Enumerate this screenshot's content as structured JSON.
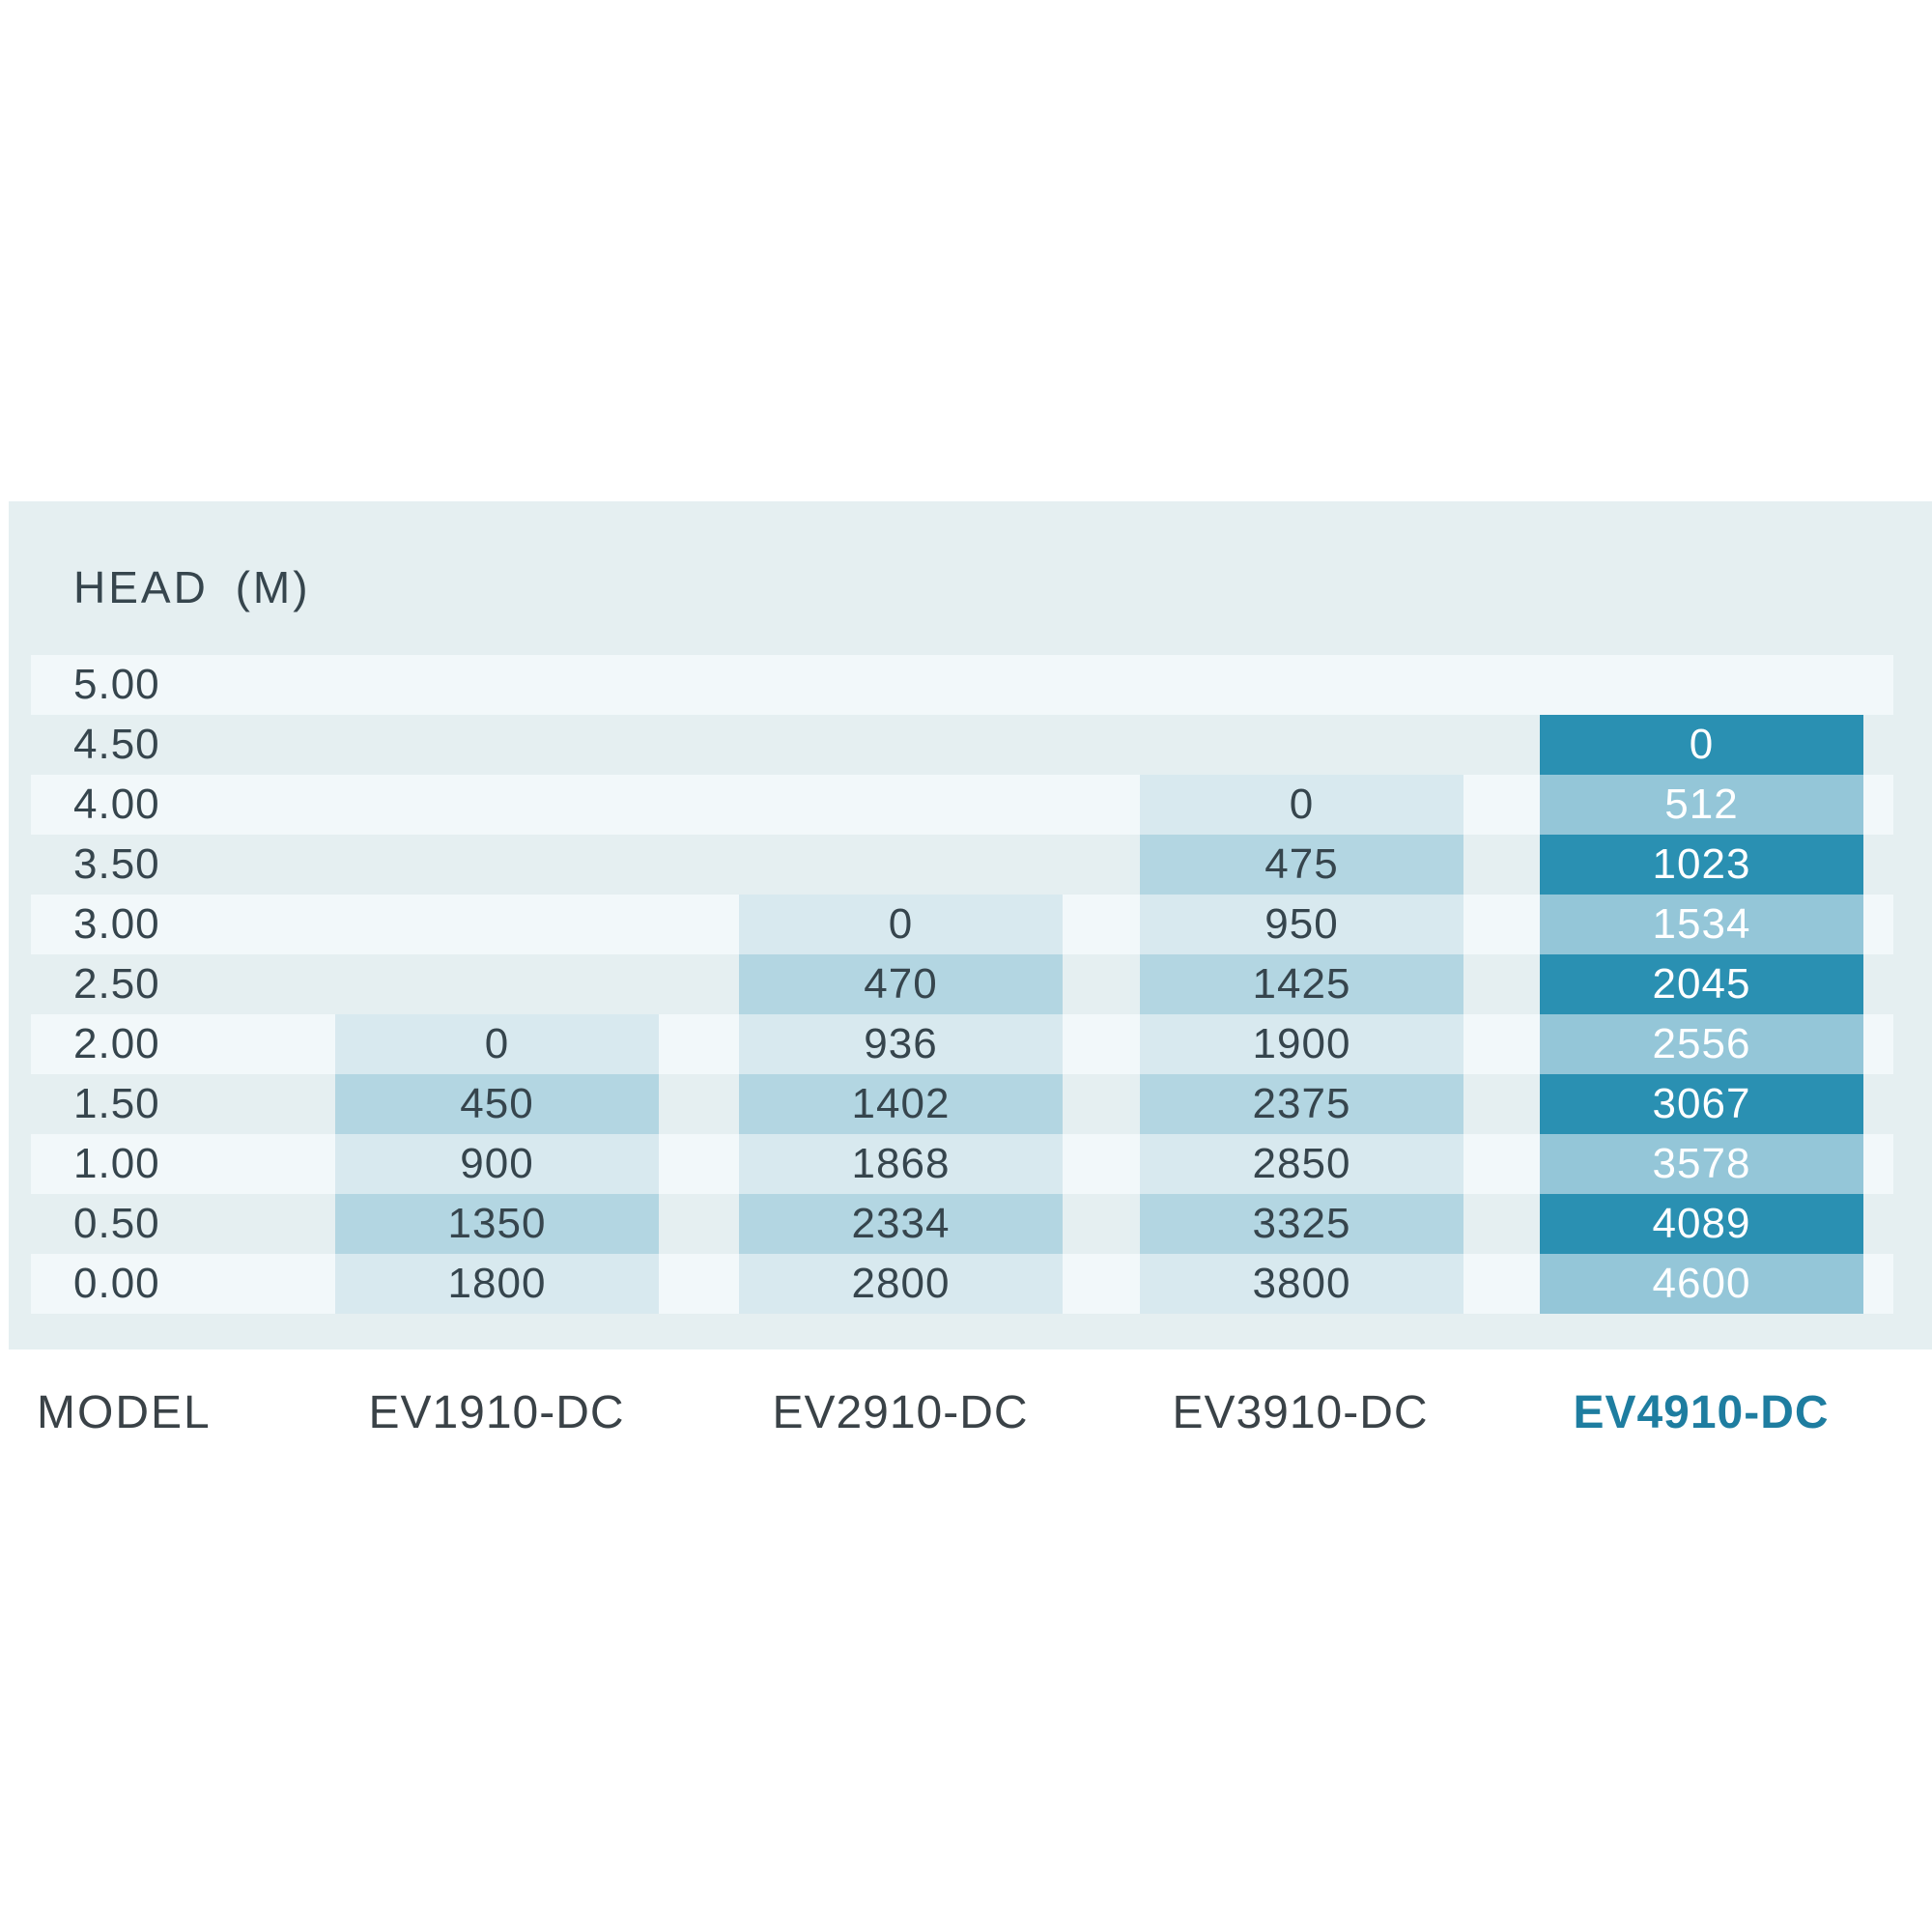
{
  "chart_data": {
    "type": "table",
    "title": "HEAD (M)",
    "categories_label": "MODEL",
    "head_m": [
      "5.00",
      "4.50",
      "4.00",
      "3.50",
      "3.00",
      "2.50",
      "2.00",
      "1.50",
      "1.00",
      "0.50",
      "0.00"
    ],
    "series": [
      {
        "name": "EV1910-DC",
        "highlight": false,
        "flows": [
          "",
          "",
          "",
          "",
          "",
          "",
          "0",
          "450",
          "900",
          "1350",
          "1800"
        ]
      },
      {
        "name": "EV2910-DC",
        "highlight": false,
        "flows": [
          "",
          "",
          "",
          "",
          "0",
          "470",
          "936",
          "1402",
          "1868",
          "2334",
          "2800"
        ]
      },
      {
        "name": "EV3910-DC",
        "highlight": false,
        "flows": [
          "",
          "",
          "0",
          "475",
          "950",
          "1425",
          "1900",
          "2375",
          "2850",
          "3325",
          "3800"
        ]
      },
      {
        "name": "EV4910-DC",
        "highlight": true,
        "flows": [
          "",
          "0",
          "512",
          "1023",
          "1534",
          "2045",
          "2556",
          "3067",
          "3578",
          "4089",
          "4600"
        ]
      }
    ],
    "layout": {
      "grid": "off",
      "striped_rows": true,
      "highlight_column": "EV4910-DC"
    }
  },
  "colors": {
    "panel_bg": "#e5eff1",
    "row_stripe": "#f2f8fa",
    "cell_light": "#d8e9ef",
    "cell_medium": "#b3d6e2",
    "cell_dark": "#2a90b2",
    "cell_medium_dark": "#94c6d8",
    "text_dark": "#36454d",
    "text_model": "#3a4247",
    "text_highlight": "#1e7da0",
    "text_on_dark": "#ffffff"
  }
}
